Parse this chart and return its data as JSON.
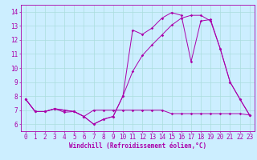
{
  "background_color": "#cceeff",
  "grid_color": "#aadddd",
  "line_color": "#aa00aa",
  "xlabel": "Windchill (Refroidissement éolien,°C)",
  "xlabel_fontsize": 5.5,
  "tick_fontsize": 5.5,
  "ylim": [
    5.5,
    14.5
  ],
  "xlim": [
    -0.5,
    23.5
  ],
  "yticks": [
    6,
    7,
    8,
    9,
    10,
    11,
    12,
    13,
    14
  ],
  "xticks": [
    0,
    1,
    2,
    3,
    4,
    5,
    6,
    7,
    8,
    9,
    10,
    11,
    12,
    13,
    14,
    15,
    16,
    17,
    18,
    19,
    20,
    21,
    22,
    23
  ],
  "line1_x": [
    0,
    1,
    2,
    3,
    4,
    5,
    6,
    7,
    8,
    9,
    10,
    11,
    12,
    13,
    14,
    15,
    16,
    17,
    18,
    19,
    20,
    21,
    22,
    23
  ],
  "line1_y": [
    7.8,
    6.9,
    6.9,
    7.1,
    7.0,
    6.9,
    6.55,
    6.0,
    6.35,
    6.55,
    8.0,
    12.7,
    12.4,
    12.85,
    13.55,
    13.95,
    13.75,
    10.45,
    13.35,
    13.45,
    11.35,
    9.0,
    7.8,
    6.65
  ],
  "line2_x": [
    0,
    1,
    2,
    3,
    4,
    5,
    6,
    7,
    8,
    9,
    10,
    11,
    12,
    13,
    14,
    15,
    16,
    17,
    18,
    19,
    20,
    21,
    22,
    23
  ],
  "line2_y": [
    7.8,
    6.9,
    6.9,
    7.1,
    7.0,
    6.9,
    6.55,
    6.0,
    6.35,
    6.55,
    8.0,
    9.75,
    10.9,
    11.65,
    12.35,
    13.05,
    13.55,
    13.75,
    13.75,
    13.35,
    11.35,
    9.0,
    7.8,
    6.65
  ],
  "line3_x": [
    0,
    1,
    2,
    3,
    4,
    5,
    6,
    7,
    8,
    9,
    10,
    11,
    12,
    13,
    14,
    15,
    16,
    17,
    18,
    19,
    20,
    21,
    22,
    23
  ],
  "line3_y": [
    7.8,
    6.9,
    6.9,
    7.1,
    6.85,
    6.9,
    6.55,
    7.0,
    7.0,
    7.0,
    7.0,
    7.0,
    7.0,
    7.0,
    7.0,
    6.75,
    6.75,
    6.75,
    6.75,
    6.75,
    6.75,
    6.75,
    6.75,
    6.65
  ],
  "marker": "D",
  "markersize": 1.8,
  "linewidth": 0.7
}
